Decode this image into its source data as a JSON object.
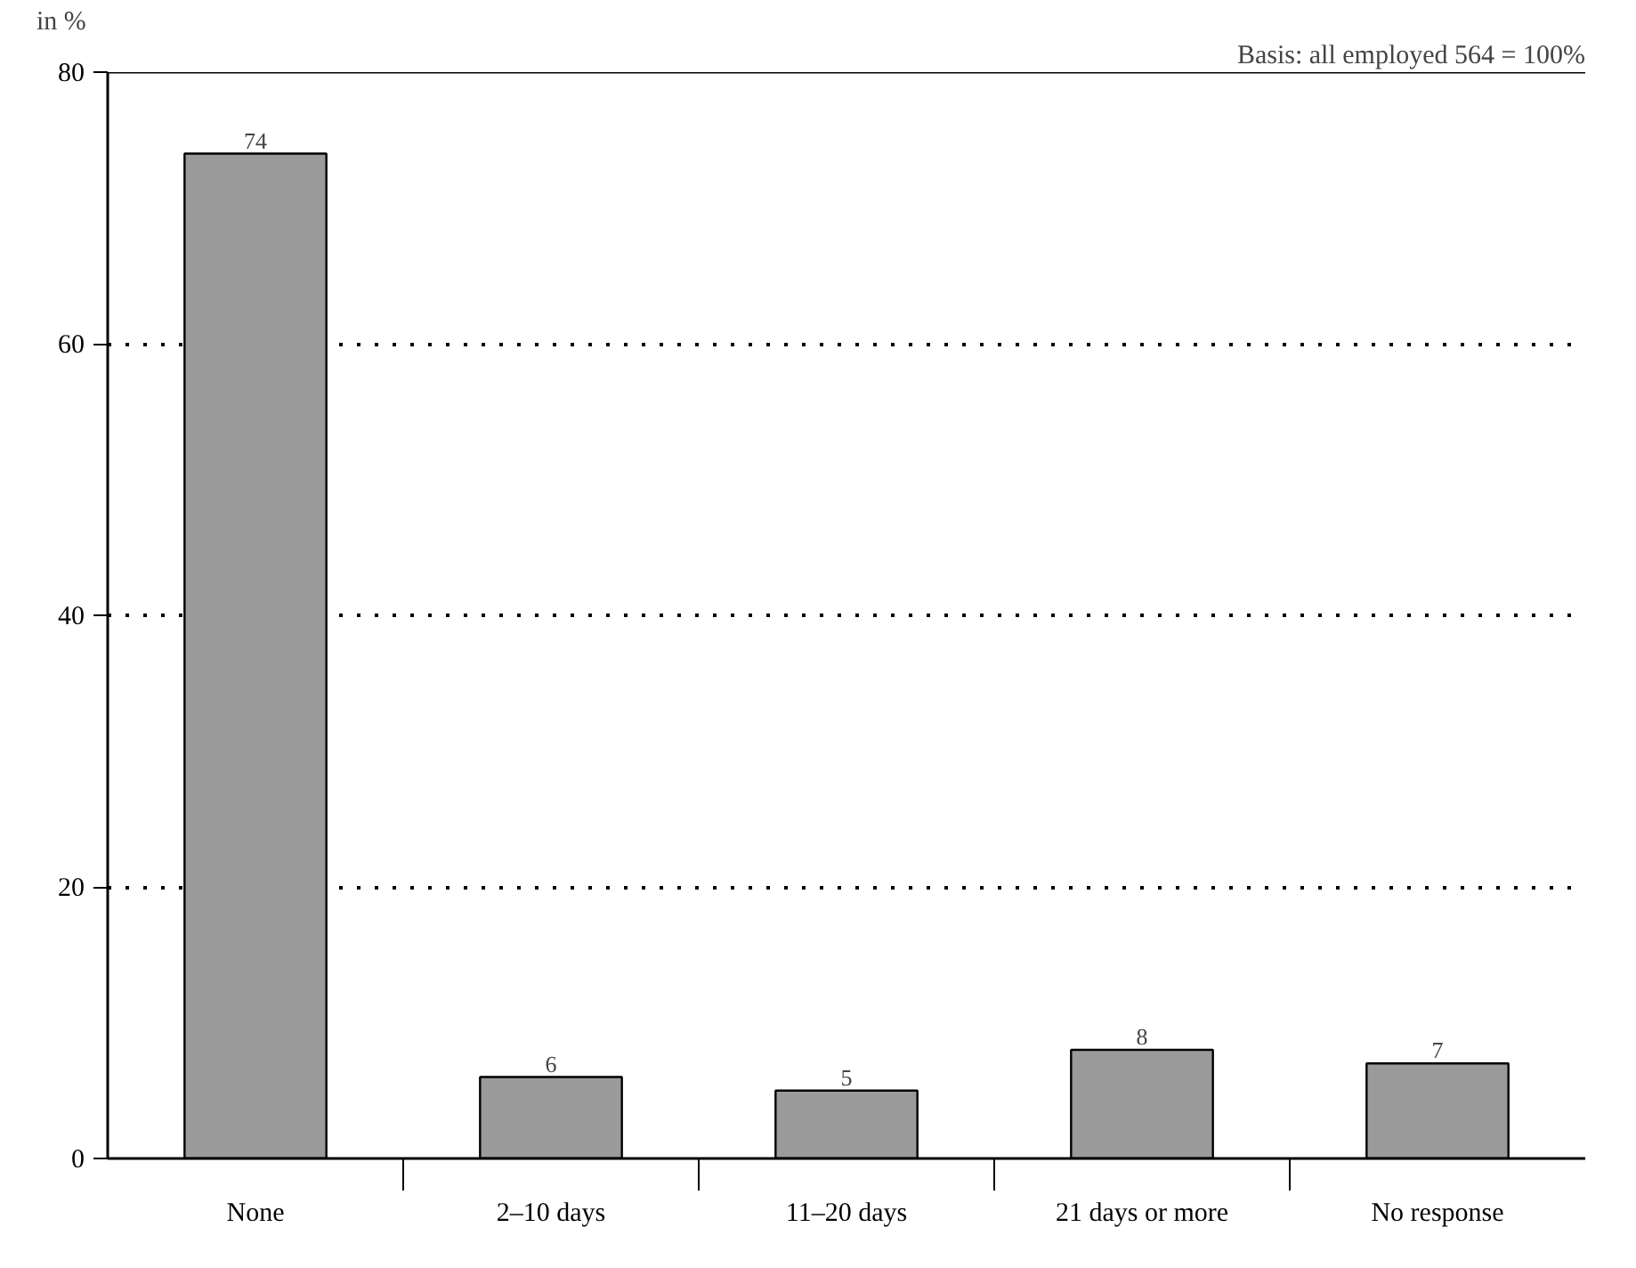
{
  "chart_data": {
    "type": "bar",
    "ylabel": "in %",
    "annotations": [
      "Basis: all employed 564 = 100%"
    ],
    "categories": [
      "None",
      "2–10 days",
      "11–20 days",
      "21 days or more",
      "No response"
    ],
    "values": [
      74,
      6,
      5,
      8,
      7
    ],
    "color": "#9a9a9a",
    "ylim": [
      0,
      80
    ],
    "yticks": [
      0,
      20,
      40,
      60,
      80
    ],
    "grid": "y",
    "data_labels": true
  }
}
